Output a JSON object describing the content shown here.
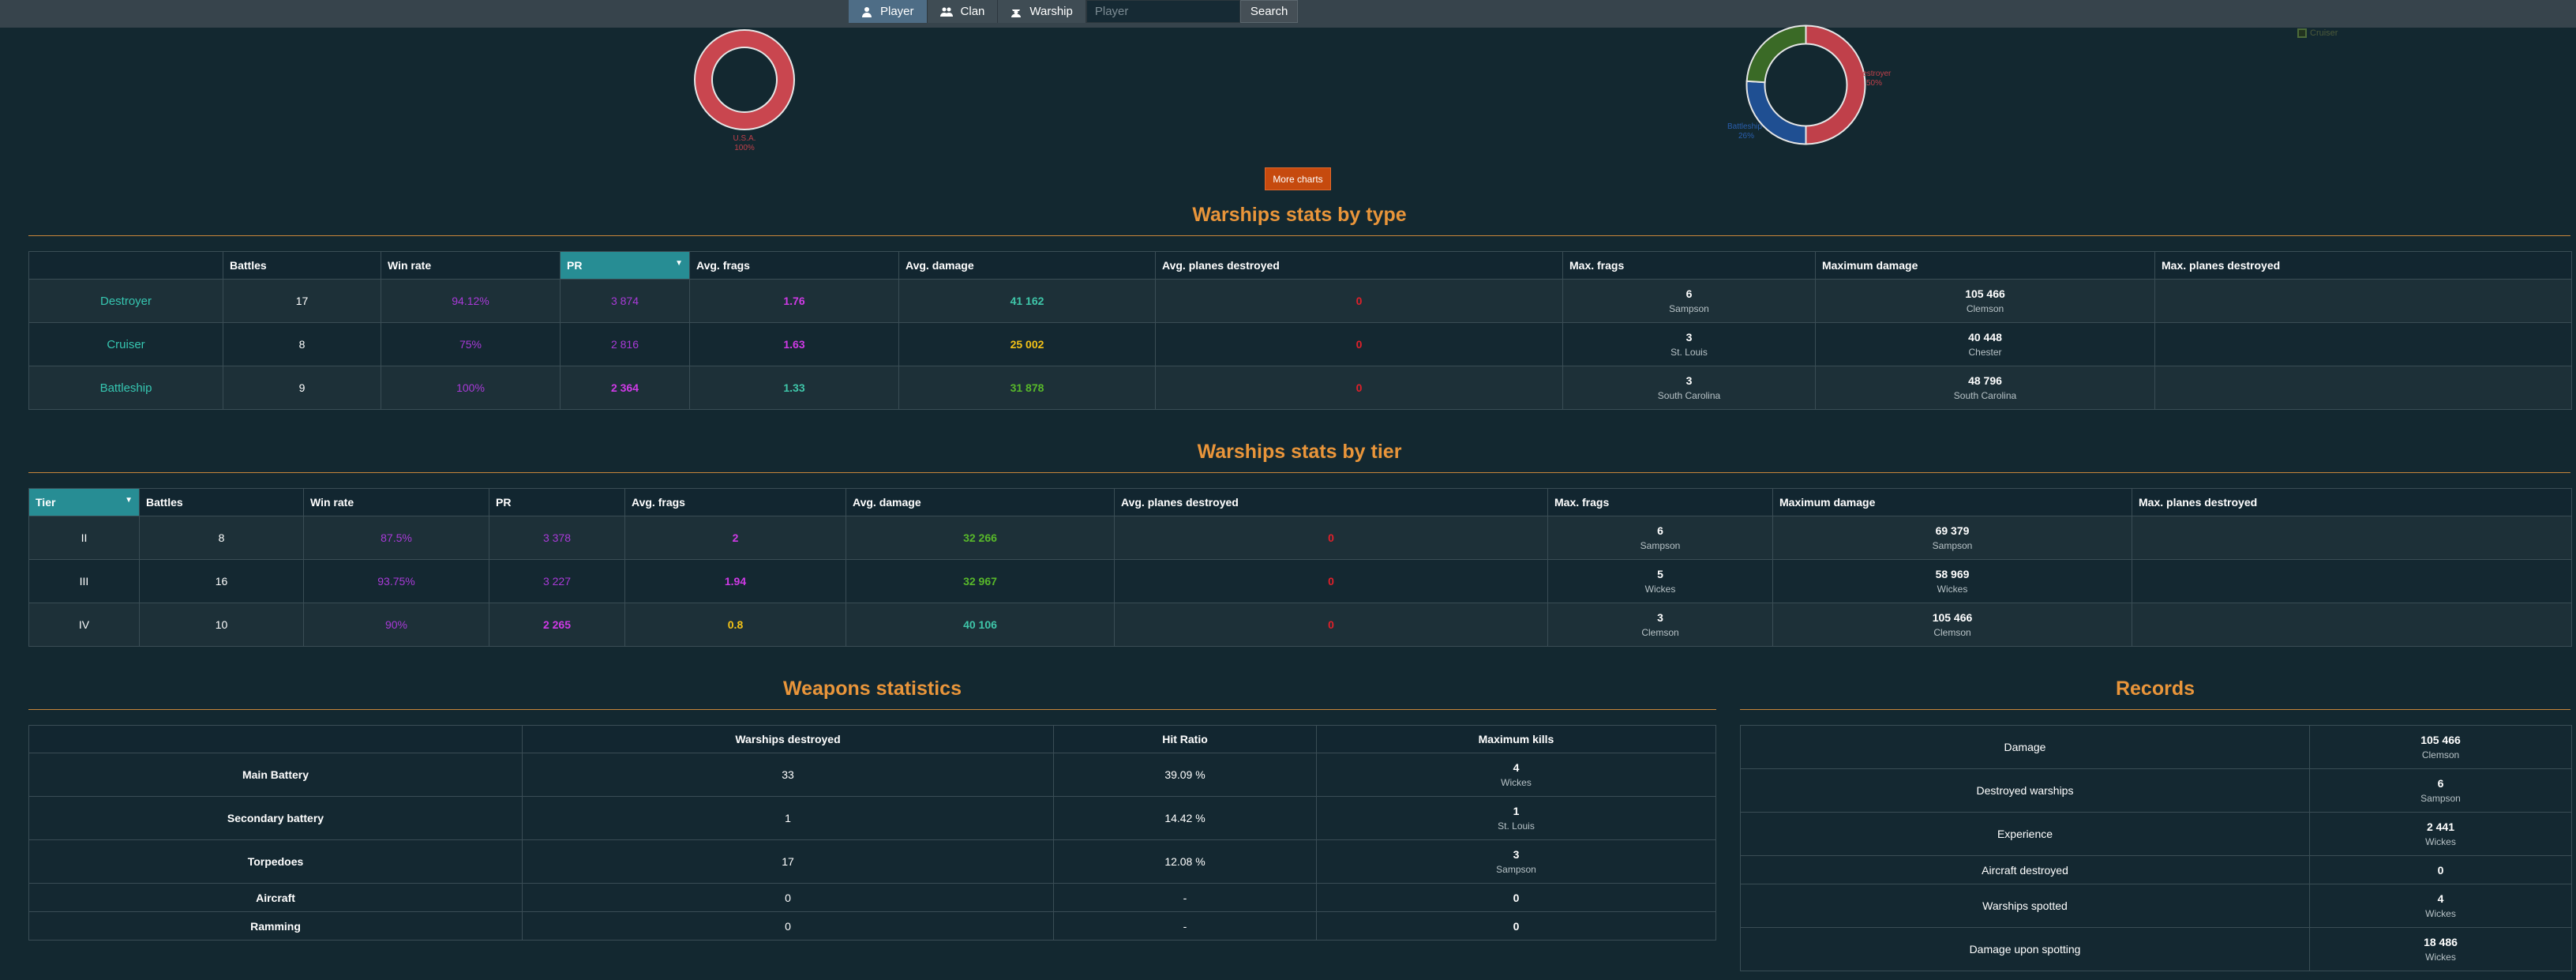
{
  "nav": {
    "player": "Player",
    "clan": "Clan",
    "warship": "Warship",
    "search_placeholder": "Player",
    "search_button": "Search"
  },
  "charts": {
    "nation_pie": {
      "label": "U.S.A.",
      "pct": "100%",
      "value": 1.0,
      "color": "#c0404a"
    },
    "type_pie": {
      "slices": [
        {
          "name": "Destroyer",
          "pct": "50%",
          "value": 0.5,
          "color": "#c0404a"
        },
        {
          "name": "Battleship",
          "pct": "26%",
          "value": 0.26,
          "color": "#1f4f92"
        },
        {
          "name": "Cruiser",
          "pct": "24%",
          "value": 0.24,
          "color": "#3a6a26"
        }
      ],
      "legend_label": "Cruiser"
    }
  },
  "more_charts_button": "More charts",
  "type_section": {
    "title": "Warships stats by type",
    "headers": [
      "",
      "Battles",
      "Win rate",
      "PR",
      "Avg. frags",
      "Avg. damage",
      "Avg. planes destroyed",
      "Max. frags",
      "Maximum damage",
      "Max. planes destroyed"
    ],
    "rows": [
      {
        "name": "Destroyer",
        "battles": "17",
        "winrate": "94.12%",
        "pr": "3 874",
        "frags": "1.76",
        "damage": "41 162",
        "planes": "0",
        "maxfrags": "6",
        "maxfrags_ship": "Sampson",
        "maxdmg": "105 466",
        "maxdmg_ship": "Clemson",
        "maxplanes": ""
      },
      {
        "name": "Cruiser",
        "battles": "8",
        "winrate": "75%",
        "pr": "2 816",
        "frags": "1.63",
        "damage": "25 002",
        "planes": "0",
        "maxfrags": "3",
        "maxfrags_ship": "St. Louis",
        "maxdmg": "40 448",
        "maxdmg_ship": "Chester",
        "maxplanes": ""
      },
      {
        "name": "Battleship",
        "battles": "9",
        "winrate": "100%",
        "pr": "2 364",
        "frags": "1.33",
        "damage": "31 878",
        "planes": "0",
        "maxfrags": "3",
        "maxfrags_ship": "South Carolina",
        "maxdmg": "48 796",
        "maxdmg_ship": "South Carolina",
        "maxplanes": ""
      }
    ]
  },
  "tier_section": {
    "title": "Warships stats by tier",
    "headers": [
      "Tier",
      "Battles",
      "Win rate",
      "PR",
      "Avg. frags",
      "Avg. damage",
      "Avg. planes destroyed",
      "Max. frags",
      "Maximum damage",
      "Max. planes destroyed"
    ],
    "rows": [
      {
        "tier": "II",
        "battles": "8",
        "winrate": "87.5%",
        "pr": "3 378",
        "frags": "2",
        "damage": "32 266",
        "planes": "0",
        "maxfrags": "6",
        "maxfrags_ship": "Sampson",
        "maxdmg": "69 379",
        "maxdmg_ship": "Sampson",
        "maxplanes": ""
      },
      {
        "tier": "III",
        "battles": "16",
        "winrate": "93.75%",
        "pr": "3 227",
        "frags": "1.94",
        "damage": "32 967",
        "planes": "0",
        "maxfrags": "5",
        "maxfrags_ship": "Wickes",
        "maxdmg": "58 969",
        "maxdmg_ship": "Wickes",
        "maxplanes": ""
      },
      {
        "tier": "IV",
        "battles": "10",
        "winrate": "90%",
        "pr": "2 265",
        "frags": "0.8",
        "damage": "40 106",
        "planes": "0",
        "maxfrags": "3",
        "maxfrags_ship": "Clemson",
        "maxdmg": "105 466",
        "maxdmg_ship": "Clemson",
        "maxplanes": ""
      }
    ]
  },
  "weapons": {
    "title": "Weapons statistics",
    "headers": [
      "",
      "Warships destroyed",
      "Hit Ratio",
      "Maximum kills"
    ],
    "rows": [
      {
        "name": "Main Battery",
        "destroyed": "33",
        "hit": "39.09 %",
        "kills": "4",
        "ship": "Wickes"
      },
      {
        "name": "Secondary battery",
        "destroyed": "1",
        "hit": "14.42 %",
        "kills": "1",
        "ship": "St. Louis"
      },
      {
        "name": "Torpedoes",
        "destroyed": "17",
        "hit": "12.08 %",
        "kills": "3",
        "ship": "Sampson"
      },
      {
        "name": "Aircraft",
        "destroyed": "0",
        "hit": "-",
        "kills": "0",
        "ship": ""
      },
      {
        "name": "Ramming",
        "destroyed": "0",
        "hit": "-",
        "kills": "0",
        "ship": ""
      }
    ]
  },
  "records": {
    "title": "Records",
    "rows": [
      {
        "name": "Damage",
        "value": "105 466",
        "ship": "Clemson"
      },
      {
        "name": "Destroyed warships",
        "value": "6",
        "ship": "Sampson"
      },
      {
        "name": "Experience",
        "value": "2 441",
        "ship": "Wickes"
      },
      {
        "name": "Aircraft destroyed",
        "value": "0",
        "ship": ""
      },
      {
        "name": "Warships spotted",
        "value": "4",
        "ship": "Wickes"
      },
      {
        "name": "Damage upon spotting",
        "value": "18 486",
        "ship": "Wickes"
      }
    ]
  }
}
